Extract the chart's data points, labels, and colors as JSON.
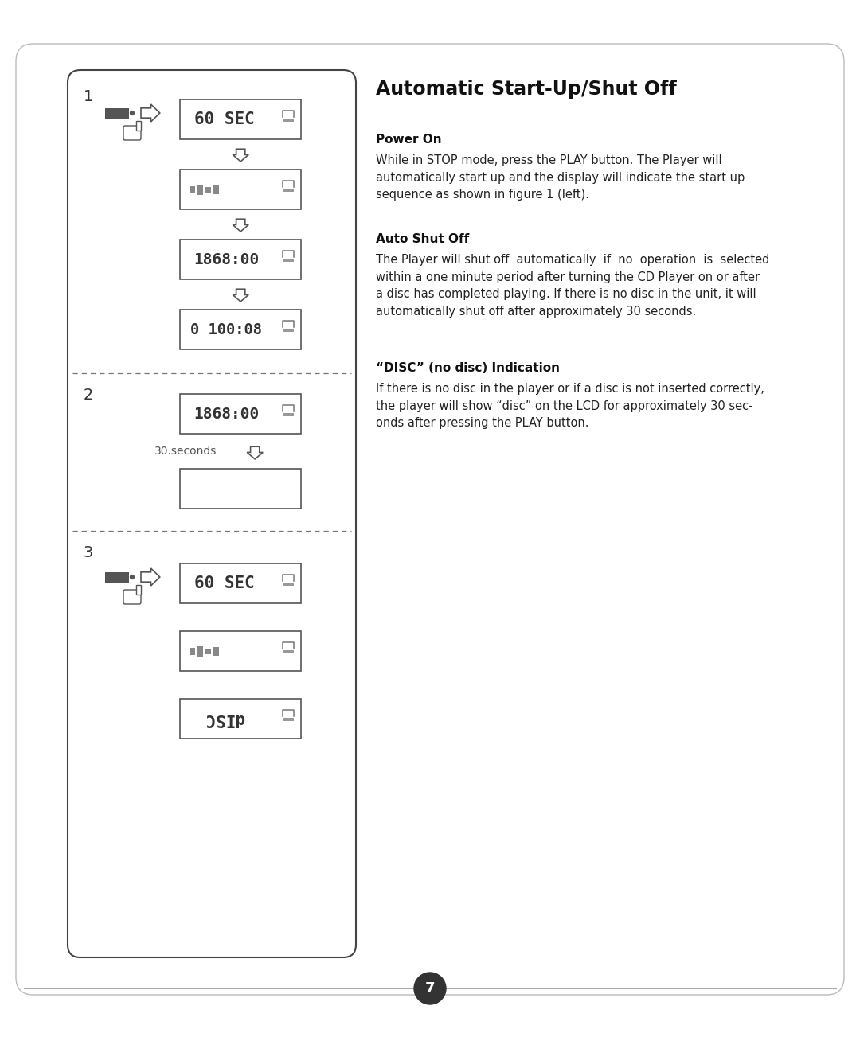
{
  "page_bg": "#ffffff",
  "title": "Automatic Start-Up/Shut Off",
  "section1_heading": "Power On",
  "section1_body": "While in STOP mode, press the PLAY button. The Player will\nautomatically start up and the display will indicate the start up\nsequence as shown in figure 1 (left).",
  "section2_heading": "Auto Shut Off",
  "section2_body": "The Player will shut off  automatically  if  no  operation  is  selected\nwithin a one minute period after turning the CD Player on or after\na disc has completed playing. If there is no disc in the unit, it will\nautomatically shut off after approximately 30 seconds.",
  "section3_heading": "“DISC” (no disc) Indication",
  "section3_body": "If there is no disc in the player or if a disc is not inserted correctly,\nthe player will show “disc” on the LCD for approximately 30 sec-\nonds after pressing the PLAY button.",
  "page_num": "7",
  "panel_label1": "1",
  "panel_label2": "2",
  "panel_label3": "3",
  "sec2_label": "30.seconds",
  "dark": "#333333",
  "mid": "#666666",
  "border": "#555555"
}
